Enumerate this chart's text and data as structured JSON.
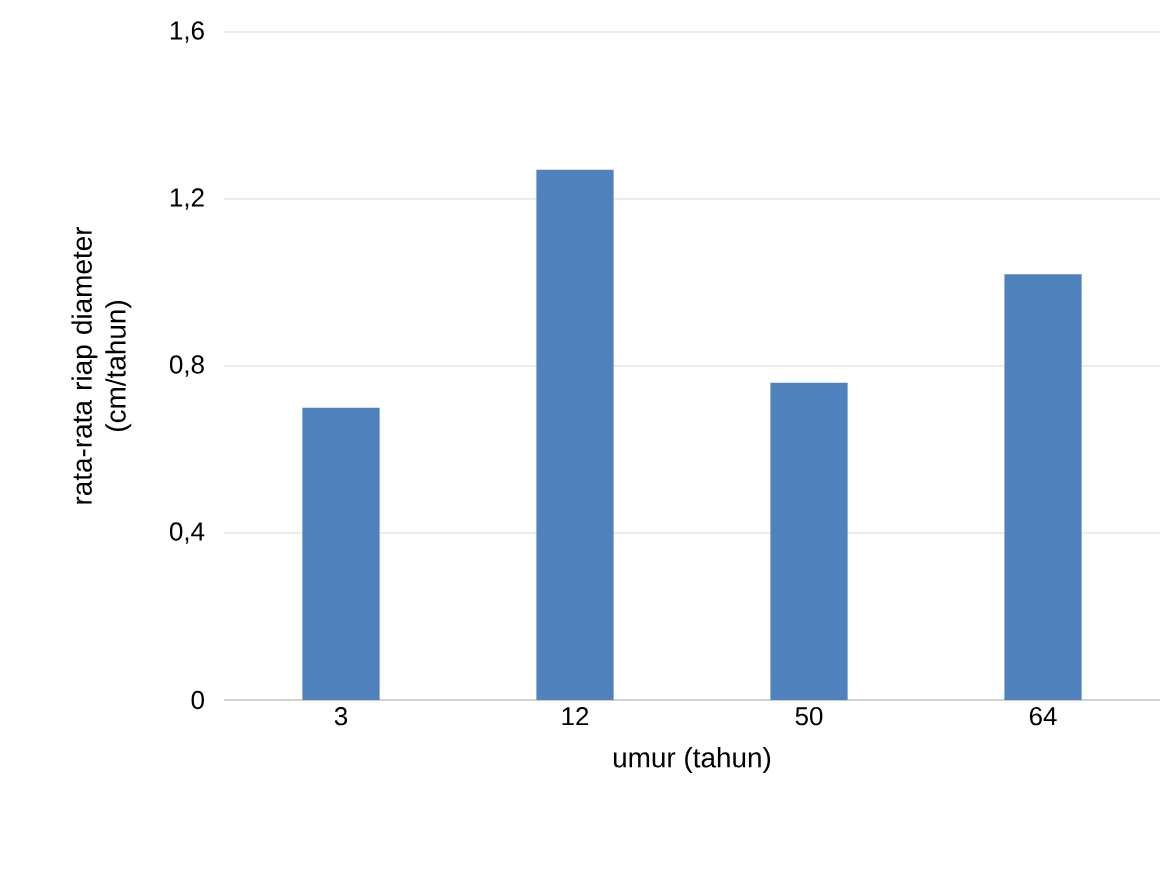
{
  "chart_data": {
    "type": "bar",
    "xlabel": "umur (tahun)",
    "ylabel": "rata-rata riap diameter\n(cm/tahun)",
    "categories": [
      "3",
      "12",
      "50",
      "64"
    ],
    "values": [
      0.7,
      1.27,
      0.76,
      1.02
    ],
    "color": "#4f81bd",
    "ylim": [
      0,
      1.6
    ],
    "yticks": [
      {
        "value": 0,
        "label": "0"
      },
      {
        "value": 0.4,
        "label": "0,4"
      },
      {
        "value": 0.8,
        "label": "0,8"
      },
      {
        "value": 1.2,
        "label": "1,2"
      },
      {
        "value": 1.6,
        "label": "1,6"
      }
    ],
    "grid": "y"
  }
}
